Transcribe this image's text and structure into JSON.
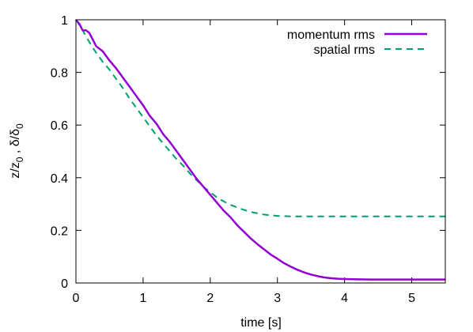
{
  "chart_data": {
    "type": "line",
    "title": "",
    "xlabel": "time [s]",
    "ylabel": "z/z₀ , δ/δ₀",
    "ylabel_parts": {
      "a": "z/z",
      "a_sub": "0",
      "sep": " , ",
      "b": "δ/δ",
      "b_sub": "0"
    },
    "xlim": [
      0,
      5.5
    ],
    "ylim": [
      0,
      1
    ],
    "xticks": [
      "0",
      "1",
      "2",
      "3",
      "4",
      "5"
    ],
    "yticks": [
      "0",
      "0.2",
      "0.4",
      "0.6",
      "0.8",
      "1"
    ],
    "grid": false,
    "legend_position": "top-right",
    "series": [
      {
        "name": "momentum rms",
        "color": "#9400d3",
        "style": "solid",
        "x": [
          0,
          0.05,
          0.1,
          0.15,
          0.2,
          0.3,
          0.4,
          0.5,
          0.6,
          0.7,
          0.8,
          0.9,
          1.0,
          1.1,
          1.2,
          1.3,
          1.4,
          1.5,
          1.6,
          1.7,
          1.8,
          1.9,
          2.0,
          2.1,
          2.2,
          2.3,
          2.4,
          2.5,
          2.6,
          2.7,
          2.8,
          2.9,
          3.0,
          3.1,
          3.2,
          3.3,
          3.4,
          3.5,
          3.6,
          3.7,
          3.8,
          3.9,
          4.0,
          4.2,
          4.4,
          4.6,
          4.8,
          5.0,
          5.2,
          5.5
        ],
        "y": [
          1.0,
          0.985,
          0.96,
          0.96,
          0.95,
          0.9,
          0.88,
          0.845,
          0.815,
          0.78,
          0.745,
          0.71,
          0.675,
          0.635,
          0.605,
          0.565,
          0.535,
          0.5,
          0.465,
          0.43,
          0.395,
          0.365,
          0.335,
          0.305,
          0.275,
          0.25,
          0.22,
          0.195,
          0.17,
          0.148,
          0.128,
          0.108,
          0.092,
          0.075,
          0.062,
          0.05,
          0.04,
          0.032,
          0.026,
          0.021,
          0.018,
          0.016,
          0.015,
          0.014,
          0.013,
          0.013,
          0.013,
          0.013,
          0.013,
          0.013
        ]
      },
      {
        "name": "spatial rms",
        "color": "#009e73",
        "style": "dashed",
        "x": [
          0,
          0.1,
          0.2,
          0.3,
          0.4,
          0.5,
          0.6,
          0.7,
          0.8,
          0.9,
          1.0,
          1.1,
          1.2,
          1.3,
          1.4,
          1.5,
          1.6,
          1.7,
          1.8,
          1.9,
          2.0,
          2.1,
          2.2,
          2.3,
          2.4,
          2.5,
          2.6,
          2.7,
          2.8,
          2.9,
          3.0,
          3.1,
          3.2,
          3.3,
          3.4,
          3.6,
          3.8,
          4.0,
          4.5,
          5.0,
          5.5
        ],
        "y": [
          1.0,
          0.96,
          0.915,
          0.875,
          0.84,
          0.81,
          0.775,
          0.74,
          0.7,
          0.665,
          0.63,
          0.595,
          0.56,
          0.53,
          0.5,
          0.47,
          0.445,
          0.415,
          0.39,
          0.365,
          0.345,
          0.325,
          0.31,
          0.297,
          0.287,
          0.278,
          0.27,
          0.265,
          0.26,
          0.257,
          0.255,
          0.254,
          0.253,
          0.253,
          0.253,
          0.253,
          0.253,
          0.253,
          0.253,
          0.253,
          0.253
        ]
      }
    ]
  }
}
